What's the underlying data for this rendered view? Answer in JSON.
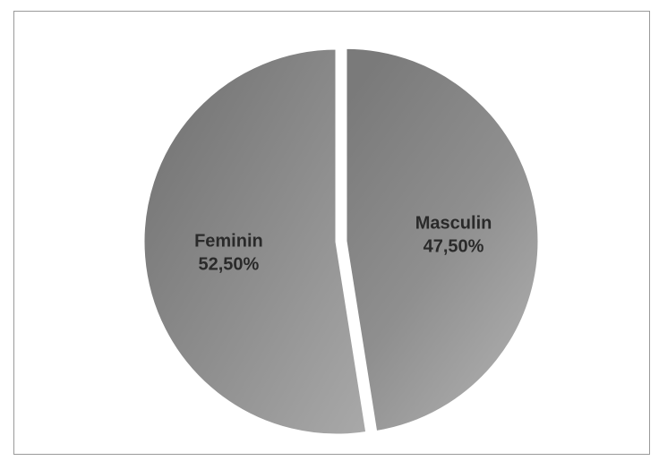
{
  "chart_data": {
    "type": "pie",
    "title": "",
    "legend": "none",
    "slices": [
      {
        "label": "Masculin",
        "value": 47.5,
        "value_label": "47,50%",
        "exploded": true
      },
      {
        "label": "Feminin",
        "value": 52.5,
        "value_label": "52,50%",
        "exploded": false
      }
    ]
  }
}
